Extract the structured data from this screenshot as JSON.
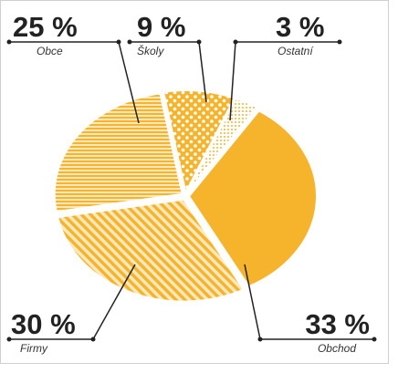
{
  "chart_data": {
    "type": "pie",
    "categories": [
      "Obce",
      "Školy",
      "Ostatní",
      "Obchod",
      "Firmy"
    ],
    "values": [
      25,
      9,
      3,
      33,
      30
    ],
    "value_labels": [
      "25 %",
      "9 %",
      "3 %",
      "33 %",
      "30 %"
    ],
    "color": "#f5b42c"
  }
}
